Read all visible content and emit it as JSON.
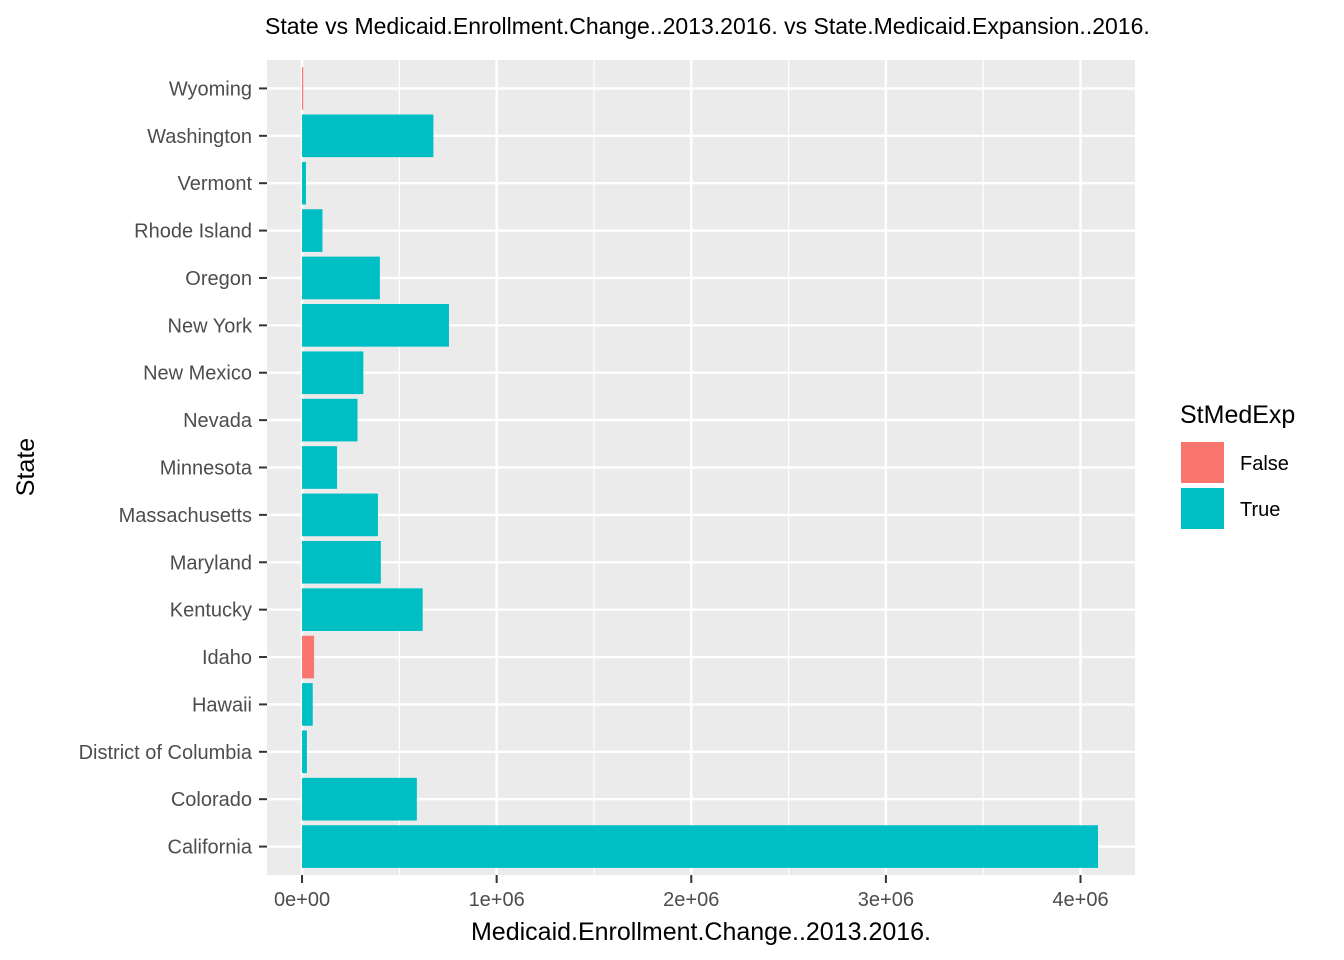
{
  "chart_data": {
    "type": "bar",
    "orientation": "horizontal",
    "title": "State vs Medicaid.Enrollment.Change..2013.2016. vs State.Medicaid.Expansion..2016.",
    "xlabel": "Medicaid.Enrollment.Change..2013.2016.",
    "ylabel": "State",
    "xlim": [
      -180000,
      4280000
    ],
    "x_ticks": [
      0,
      1000000,
      2000000,
      3000000,
      4000000
    ],
    "x_tick_labels": [
      "0e+00",
      "1e+06",
      "2e+06",
      "3e+06",
      "4e+06"
    ],
    "grid": true,
    "legend": {
      "title": "StMedExp",
      "placement": "right",
      "entries": [
        {
          "label": "False",
          "color": "#F8766D"
        },
        {
          "label": "True",
          "color": "#00BFC4"
        }
      ]
    },
    "categories": [
      "California",
      "Colorado",
      "District of Columbia",
      "Hawaii",
      "Idaho",
      "Kentucky",
      "Maryland",
      "Massachusetts",
      "Minnesota",
      "Nevada",
      "New Mexico",
      "New York",
      "Oregon",
      "Rhode Island",
      "Vermont",
      "Washington",
      "Wyoming"
    ],
    "values": [
      4090000,
      590000,
      25000,
      55000,
      62000,
      620000,
      405000,
      390000,
      180000,
      285000,
      315000,
      755000,
      400000,
      105000,
      20000,
      675000,
      4000
    ],
    "groups": [
      "True",
      "True",
      "True",
      "True",
      "False",
      "True",
      "True",
      "True",
      "True",
      "True",
      "True",
      "True",
      "True",
      "True",
      "True",
      "True",
      "False"
    ]
  },
  "colors": {
    "panel_background": "#EBEBEB",
    "grid": "#FFFFFF",
    "false": "#F8766D",
    "true": "#00BFC4"
  }
}
